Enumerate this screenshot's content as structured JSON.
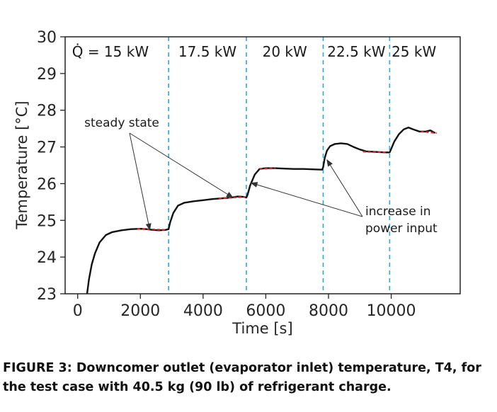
{
  "chart_data": {
    "type": "line",
    "xlabel": "Time [s]",
    "ylabel": "Temperature [°C]",
    "xlim": [
      -400,
      12200
    ],
    "ylim": [
      23,
      30
    ],
    "xticks": [
      "0",
      "2000",
      "4000",
      "6000",
      "8000",
      "10000"
    ],
    "yticks": [
      "23",
      "24",
      "25",
      "26",
      "27",
      "28",
      "29",
      "30"
    ],
    "grid": false,
    "power_levels": [
      {
        "label": "Q̇ =  15 kW",
        "start": 0,
        "end": 2900
      },
      {
        "label": "17.5 kW",
        "start": 2900,
        "end": 5380
      },
      {
        "label": "20 kW",
        "start": 5380,
        "end": 7830
      },
      {
        "label": "22.5 kW",
        "start": 7830,
        "end": 9950
      },
      {
        "label": "25 kW",
        "start": 9950,
        "end": 11500
      }
    ],
    "series": [
      {
        "x": [
          300,
          360,
          450,
          550,
          700,
          900,
          1100,
          1400,
          1700,
          2000,
          2200,
          2400,
          2600,
          2800,
          2900,
          2950,
          3050,
          3200,
          3400,
          3700,
          4000,
          4300,
          4600,
          4900,
          5100,
          5300,
          5380,
          5420,
          5500,
          5650,
          5800,
          6000,
          6300,
          6600,
          6900,
          7200,
          7500,
          7800,
          7830,
          7880,
          7950,
          8050,
          8200,
          8400,
          8600,
          8800,
          9000,
          9200,
          9400,
          9600,
          9800,
          9950,
          10000,
          10100,
          10250,
          10400,
          10550,
          10700,
          10900,
          11100,
          11250,
          11400
        ],
        "y": [
          23.0,
          23.4,
          23.8,
          24.1,
          24.4,
          24.6,
          24.68,
          24.73,
          24.76,
          24.77,
          24.76,
          24.74,
          24.73,
          24.74,
          24.76,
          24.95,
          25.2,
          25.4,
          25.48,
          25.52,
          25.55,
          25.58,
          25.6,
          25.62,
          25.65,
          25.64,
          25.62,
          25.7,
          25.95,
          26.25,
          26.4,
          26.42,
          26.42,
          26.41,
          26.4,
          26.4,
          26.39,
          26.38,
          26.45,
          26.7,
          26.9,
          27.02,
          27.08,
          27.1,
          27.08,
          27.0,
          26.93,
          26.88,
          26.87,
          26.86,
          26.85,
          26.85,
          26.95,
          27.15,
          27.35,
          27.48,
          27.53,
          27.48,
          27.42,
          27.42,
          27.45,
          27.38
        ]
      }
    ],
    "steady_state_segments": [
      {
        "x": [
          1900,
          2800
        ],
        "y": [
          24.77,
          24.74
        ]
      },
      {
        "x": [
          4500,
          5350
        ],
        "y": [
          25.6,
          25.64
        ]
      },
      {
        "x": [
          5800,
          6300
        ],
        "y": [
          26.4,
          26.42
        ]
      },
      {
        "x": [
          9100,
          9850
        ],
        "y": [
          26.87,
          26.85
        ]
      },
      {
        "x": [
          10950,
          11450
        ],
        "y": [
          27.42,
          27.38
        ]
      }
    ],
    "annotations": [
      {
        "text": "steady state",
        "arrow_targets": [
          [
            2300,
            24.74
          ],
          [
            4950,
            25.62
          ]
        ]
      },
      {
        "text": [
          "increase in",
          "power input"
        ],
        "arrow_targets": [
          [
            5530,
            26.02
          ],
          [
            7950,
            26.65
          ]
        ]
      }
    ]
  },
  "caption": "FIGURE 3: Downcomer outlet (evaporator inlet) temperature, T4, for the test case with 40.5 kg (90 lb) of refrigerant charge."
}
